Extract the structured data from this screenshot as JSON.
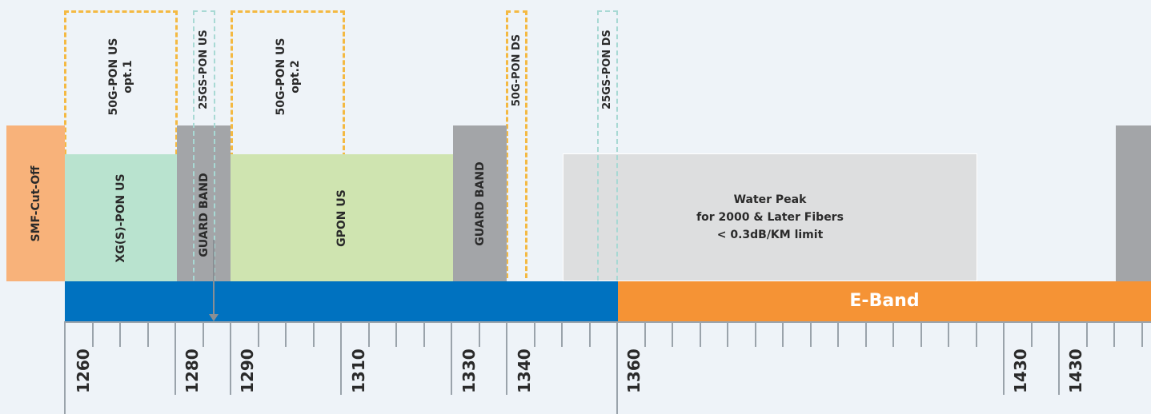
{
  "colors": {
    "background": "#eef3f8",
    "smf": "#f8b27a",
    "xgs_pon": "#b9e3cf",
    "gpon": "#cfe4b0",
    "guard": "#a3a5a8",
    "water_peak": "#dddedf",
    "o_band": "#0072c0",
    "e_band": "#f59335",
    "dash_50g": "#f4b942",
    "dash_25gs": "#a8d9d4"
  },
  "blocks": {
    "smf_cutoff": "SMF-Cut-Off",
    "xgs_pon_us": "XG(S)-PON US",
    "guard_band_1": "GUARD BAND",
    "gpon_us": "GPON US",
    "guard_band_2": "GUARD BAND",
    "water_peak": {
      "line1": "Water Peak",
      "line2": "for 2000 & Later Fibers",
      "line3": "< 0.3dB/KM limit"
    }
  },
  "dashed": {
    "pon50g_us_opt1_a": "50G-PON US",
    "pon50g_us_opt1_b": "opt.1",
    "pon25gs_us": "25GS-PON US",
    "pon50g_us_opt2_a": "50G-PON US",
    "pon50g_us_opt2_b": "opt.2",
    "pon50g_ds": "50G-PON DS",
    "pon25gs_ds": "25GS-PON DS"
  },
  "bands": {
    "e_band": "E-Band"
  },
  "axis": {
    "labels": [
      "1260",
      "1280",
      "1290",
      "1310",
      "1330",
      "1340",
      "1360",
      "1430",
      "1430"
    ]
  }
}
